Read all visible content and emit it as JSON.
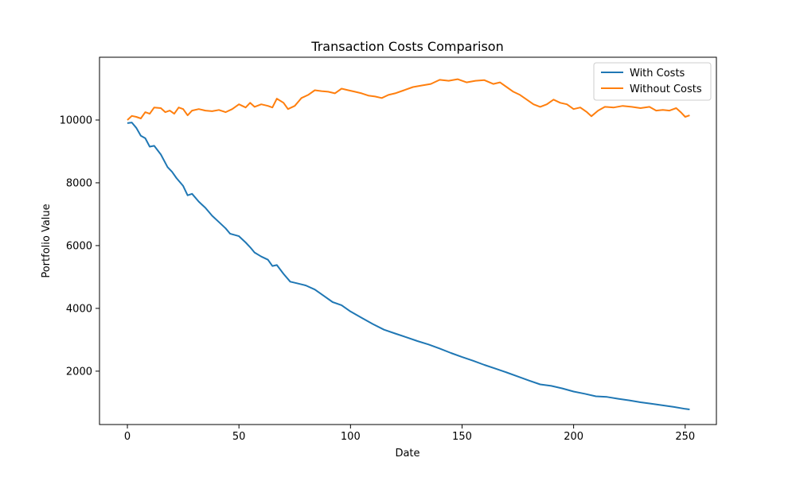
{
  "chart_data": {
    "type": "line",
    "title": "Transaction Costs Comparison",
    "xlabel": "Date",
    "ylabel": "Portfolio Value",
    "xlim": [
      -12.5,
      264
    ],
    "ylim": [
      300,
      12000
    ],
    "x_ticks": [
      0,
      50,
      100,
      150,
      200,
      250
    ],
    "y_ticks": [
      2000,
      4000,
      6000,
      8000,
      10000
    ],
    "grid": false,
    "legend_position": "top-right",
    "series": [
      {
        "name": "With Costs",
        "color": "#1f77b4",
        "points": [
          [
            0,
            9900
          ],
          [
            2,
            9920
          ],
          [
            4,
            9750
          ],
          [
            6,
            9500
          ],
          [
            8,
            9420
          ],
          [
            10,
            9150
          ],
          [
            12,
            9180
          ],
          [
            15,
            8900
          ],
          [
            18,
            8500
          ],
          [
            20,
            8350
          ],
          [
            22,
            8150
          ],
          [
            25,
            7900
          ],
          [
            27,
            7600
          ],
          [
            29,
            7650
          ],
          [
            32,
            7400
          ],
          [
            35,
            7200
          ],
          [
            38,
            6950
          ],
          [
            41,
            6750
          ],
          [
            44,
            6550
          ],
          [
            46,
            6380
          ],
          [
            50,
            6300
          ],
          [
            53,
            6100
          ],
          [
            55,
            5950
          ],
          [
            57,
            5780
          ],
          [
            60,
            5650
          ],
          [
            63,
            5550
          ],
          [
            65,
            5350
          ],
          [
            67,
            5380
          ],
          [
            70,
            5100
          ],
          [
            73,
            4850
          ],
          [
            76,
            4800
          ],
          [
            80,
            4730
          ],
          [
            84,
            4600
          ],
          [
            88,
            4400
          ],
          [
            92,
            4200
          ],
          [
            96,
            4100
          ],
          [
            100,
            3900
          ],
          [
            105,
            3700
          ],
          [
            110,
            3500
          ],
          [
            115,
            3320
          ],
          [
            120,
            3200
          ],
          [
            125,
            3080
          ],
          [
            130,
            2960
          ],
          [
            135,
            2850
          ],
          [
            140,
            2720
          ],
          [
            145,
            2580
          ],
          [
            150,
            2450
          ],
          [
            155,
            2330
          ],
          [
            160,
            2200
          ],
          [
            165,
            2080
          ],
          [
            170,
            1960
          ],
          [
            175,
            1830
          ],
          [
            180,
            1700
          ],
          [
            185,
            1580
          ],
          [
            190,
            1530
          ],
          [
            195,
            1450
          ],
          [
            200,
            1350
          ],
          [
            205,
            1280
          ],
          [
            210,
            1200
          ],
          [
            215,
            1180
          ],
          [
            220,
            1120
          ],
          [
            225,
            1070
          ],
          [
            230,
            1010
          ],
          [
            235,
            960
          ],
          [
            240,
            910
          ],
          [
            245,
            860
          ],
          [
            250,
            800
          ],
          [
            252,
            780
          ]
        ]
      },
      {
        "name": "Without Costs",
        "color": "#ff7f0e",
        "points": [
          [
            0,
            10000
          ],
          [
            2,
            10130
          ],
          [
            4,
            10100
          ],
          [
            6,
            10050
          ],
          [
            8,
            10250
          ],
          [
            10,
            10200
          ],
          [
            12,
            10400
          ],
          [
            15,
            10380
          ],
          [
            17,
            10250
          ],
          [
            19,
            10300
          ],
          [
            21,
            10200
          ],
          [
            23,
            10400
          ],
          [
            25,
            10350
          ],
          [
            27,
            10150
          ],
          [
            29,
            10300
          ],
          [
            32,
            10350
          ],
          [
            35,
            10300
          ],
          [
            38,
            10280
          ],
          [
            41,
            10320
          ],
          [
            44,
            10250
          ],
          [
            47,
            10350
          ],
          [
            50,
            10500
          ],
          [
            53,
            10400
          ],
          [
            55,
            10550
          ],
          [
            57,
            10420
          ],
          [
            60,
            10500
          ],
          [
            63,
            10450
          ],
          [
            65,
            10400
          ],
          [
            67,
            10680
          ],
          [
            70,
            10550
          ],
          [
            72,
            10350
          ],
          [
            75,
            10450
          ],
          [
            78,
            10700
          ],
          [
            81,
            10800
          ],
          [
            84,
            10950
          ],
          [
            87,
            10920
          ],
          [
            90,
            10900
          ],
          [
            93,
            10850
          ],
          [
            96,
            11000
          ],
          [
            99,
            10950
          ],
          [
            102,
            10900
          ],
          [
            105,
            10850
          ],
          [
            108,
            10780
          ],
          [
            111,
            10750
          ],
          [
            114,
            10700
          ],
          [
            117,
            10800
          ],
          [
            120,
            10850
          ],
          [
            124,
            10950
          ],
          [
            128,
            11050
          ],
          [
            132,
            11100
          ],
          [
            136,
            11150
          ],
          [
            140,
            11280
          ],
          [
            144,
            11250
          ],
          [
            148,
            11300
          ],
          [
            152,
            11200
          ],
          [
            156,
            11250
          ],
          [
            160,
            11270
          ],
          [
            164,
            11150
          ],
          [
            167,
            11200
          ],
          [
            170,
            11050
          ],
          [
            173,
            10900
          ],
          [
            176,
            10800
          ],
          [
            179,
            10650
          ],
          [
            182,
            10500
          ],
          [
            185,
            10420
          ],
          [
            188,
            10500
          ],
          [
            191,
            10650
          ],
          [
            194,
            10550
          ],
          [
            197,
            10500
          ],
          [
            200,
            10350
          ],
          [
            203,
            10400
          ],
          [
            206,
            10250
          ],
          [
            208,
            10120
          ],
          [
            211,
            10300
          ],
          [
            214,
            10420
          ],
          [
            218,
            10400
          ],
          [
            222,
            10450
          ],
          [
            226,
            10420
          ],
          [
            230,
            10380
          ],
          [
            234,
            10420
          ],
          [
            237,
            10300
          ],
          [
            240,
            10320
          ],
          [
            243,
            10300
          ],
          [
            246,
            10380
          ],
          [
            248,
            10250
          ],
          [
            250,
            10100
          ],
          [
            252,
            10150
          ]
        ]
      }
    ]
  }
}
